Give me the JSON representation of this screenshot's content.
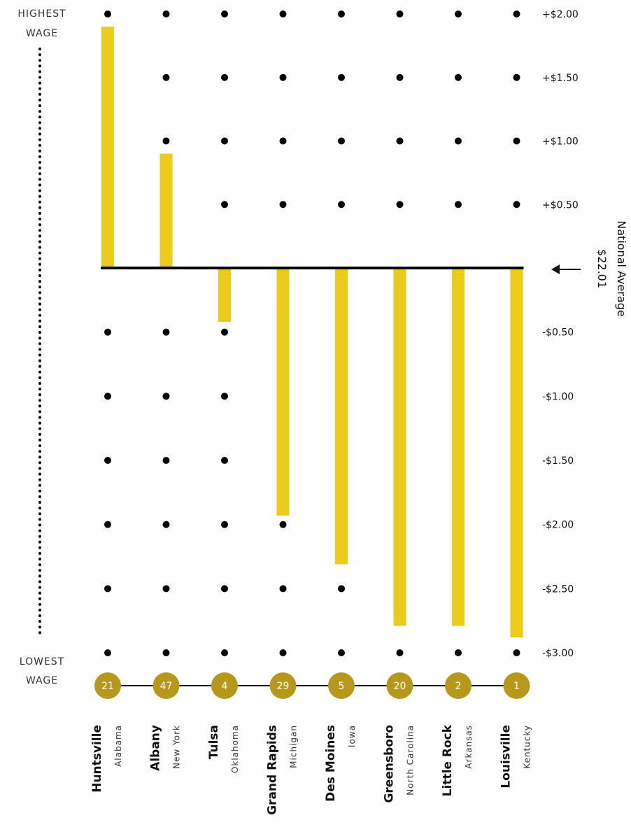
{
  "chart_data": {
    "type": "bar",
    "orientation": "vertical",
    "baseline_label": "National Average",
    "baseline_value": "$22.01",
    "top_label": [
      "HIGHEST",
      "WAGE"
    ],
    "bottom_label": [
      "LOWEST",
      "WAGE"
    ],
    "ylim": [
      -3.0,
      2.0
    ],
    "y_ticks": [
      {
        "value": 2.0,
        "label": "+$2.00"
      },
      {
        "value": 1.5,
        "label": "+$1.50"
      },
      {
        "value": 1.0,
        "label": "+$1.00"
      },
      {
        "value": 0.5,
        "label": "+$0.50"
      },
      {
        "value": -0.5,
        "label": "-$0.50"
      },
      {
        "value": -1.0,
        "label": "-$1.00"
      },
      {
        "value": -1.5,
        "label": "-$1.50"
      },
      {
        "value": -2.0,
        "label": "-$2.00"
      },
      {
        "value": -2.5,
        "label": "-$2.50"
      },
      {
        "value": -3.0,
        "label": "-$3.00"
      }
    ],
    "categories": [
      {
        "city": "Huntsville",
        "state": "Alabama",
        "rank": "21",
        "value": 1.9
      },
      {
        "city": "Albany",
        "state": "New York",
        "rank": "47",
        "value": 0.9
      },
      {
        "city": "Tulsa",
        "state": "Oklahoma",
        "rank": "4",
        "value": -0.42
      },
      {
        "city": "Grand Rapids",
        "state": "Michigan",
        "rank": "29",
        "value": -1.93
      },
      {
        "city": "Des Moines",
        "state": "Iowa",
        "rank": "5",
        "value": -2.31
      },
      {
        "city": "Greensboro",
        "state": "North Carolina",
        "rank": "20",
        "value": -2.79
      },
      {
        "city": "Little Rock",
        "state": "Arkansas",
        "rank": "2",
        "value": -2.79
      },
      {
        "city": "Louisville",
        "state": "Kentucky",
        "rank": "1",
        "value": -2.88
      }
    ],
    "colors": {
      "bar": "#ECCB1A",
      "rank_circle": "#B8981A",
      "dot": "#000000",
      "baseline": "#000000"
    },
    "grid": "dots"
  }
}
